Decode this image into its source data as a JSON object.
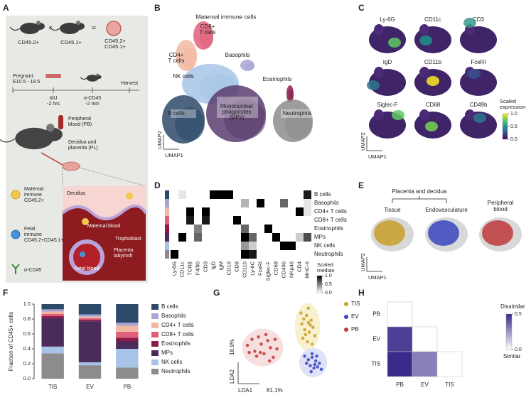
{
  "panel_labels": [
    "A",
    "B",
    "C",
    "D",
    "E",
    "F",
    "G",
    "H"
  ],
  "schematic": {
    "donor_female": "CD45.2+",
    "cross": "×",
    "donor_male": "CD45.1+",
    "equals": "=",
    "offspring": [
      "CD45.2+",
      "CD45.1+"
    ],
    "pregnant": [
      "Pregnant",
      "E10.5 - 18.5"
    ],
    "idu": [
      "IdU",
      "-2 hrs"
    ],
    "acd45_step": [
      "α-CD45",
      "-2 min"
    ],
    "harvest": "Harvest",
    "pb": [
      "Peripheral",
      "blood (PB)"
    ],
    "pl": [
      "Decidua and",
      "placenta (PL)"
    ],
    "legend_maternal": [
      "Maternal",
      "immune",
      "CD45.2+"
    ],
    "legend_fetal": [
      "Fetal",
      "immune",
      "CD45.2+CD45.1+"
    ],
    "legend_antibody": "α-CD45",
    "decidua": "Decidua",
    "maternal_blood": "Maternal blood",
    "trophoblast": "Trophoblast",
    "labyrinth": [
      "Placenta",
      "labyrinth"
    ],
    "fetal_blood": "Fetal blood"
  },
  "umap_b": {
    "title": "Maternal immune cells",
    "clusters": [
      [
        "CD8+",
        "T cells"
      ],
      [
        "CD4+",
        "T cells"
      ],
      [
        "Basophils"
      ],
      [
        "NK cells"
      ],
      [
        "Eosinophils"
      ],
      [
        "Mononuclear",
        "phagocytes",
        "(MPs)"
      ],
      [
        "B cells"
      ],
      [
        "Neutrophils"
      ]
    ],
    "xlabel": "UMAP1",
    "ylabel": "UMAP2"
  },
  "panel_c": {
    "markers": [
      "Ly-6G",
      "CD11c",
      "CD3",
      "IgD",
      "CD11b",
      "FceRI",
      "Siglec-F",
      "CD68",
      "CD49b"
    ],
    "colorbar_title": [
      "Scaled",
      "expression"
    ],
    "colors": [
      "#440154",
      "#3b528b",
      "#21918c",
      "#5ec962",
      "#fde725"
    ],
    "clim": [
      0,
      1
    ],
    "colorbar_ticks": [
      {
        "value": 1,
        "label": "1.0"
      },
      0.5,
      {
        "value": 0,
        "label": "0.0"
      }
    ],
    "xlabel": "UMAP1",
    "ylabel": "UMAP2"
  },
  "panel_e": {
    "group": "Placenta and decidua",
    "tissue": "Tissue",
    "ev": "Endovasculature",
    "pb": [
      "Peripheral",
      "blood"
    ],
    "xlabel": "UMAP1",
    "ylabel": "UMAP2"
  },
  "chart_data": [
    {
      "type": "heatmap",
      "rows": [
        "B cells",
        "Basophils",
        "CD4+ T cells",
        "CD8+ T cells",
        "Eosinophils",
        "MPs",
        "NK cells",
        "Neutrophils"
      ],
      "row_colors": [
        "#2e4a6b",
        "#a9a6d6",
        "#f2b8a2",
        "#e0607a",
        "#8b1c4a",
        "#4a2c5a",
        "#a7c4e8",
        "#8c8c8c"
      ],
      "columns": [
        "Ly-6G",
        "CD11c",
        "TCRβ",
        "F4/80",
        "CD3",
        "IgD",
        "IgM",
        "CD19",
        "CD8",
        "CD11b",
        "Ly-6C",
        "FceRI",
        "Siglec-F",
        "CD68",
        "CD49b",
        "NKp46",
        "CD4",
        "MHC-II"
      ],
      "values": [
        [
          0,
          0.1,
          0,
          0,
          0,
          1,
          1,
          1,
          0,
          0,
          0,
          0,
          0,
          0,
          0,
          0,
          0,
          0.9
        ],
        [
          0,
          0,
          0,
          0,
          0,
          0,
          0,
          0,
          0,
          0.3,
          0,
          1,
          0,
          0,
          0.6,
          0,
          0,
          0.1
        ],
        [
          0,
          0,
          1,
          0,
          1,
          0,
          0,
          0,
          0,
          0,
          0,
          0,
          0,
          0,
          0,
          0,
          1,
          0.1
        ],
        [
          0,
          0,
          0.9,
          0,
          0.9,
          0,
          0,
          0,
          1,
          0,
          0,
          0,
          0,
          0,
          0,
          0,
          0,
          0
        ],
        [
          0,
          0,
          0,
          0.5,
          0,
          0,
          0,
          0,
          0,
          0.6,
          0,
          0,
          1,
          0,
          0,
          0,
          0,
          0
        ],
        [
          0,
          1,
          0,
          0.6,
          0,
          0,
          0,
          0,
          0,
          1,
          0.6,
          0,
          0,
          1,
          0,
          0,
          0.2,
          0.7
        ],
        [
          0,
          0,
          0,
          0,
          0,
          0,
          0,
          0,
          0,
          0.4,
          0.2,
          0,
          0,
          0,
          1,
          1,
          0,
          0
        ],
        [
          1,
          0,
          0,
          0,
          0,
          0,
          0,
          0,
          0,
          1,
          0.9,
          0,
          0,
          0,
          0,
          0,
          0,
          0
        ]
      ],
      "colors": [
        "#ffffff",
        "#000000"
      ],
      "clim": [
        0,
        1
      ],
      "colorbar_title": [
        "Scaled",
        "median"
      ],
      "colorbar_ticks": [
        {
          "value": 1,
          "label": "1.0"
        },
        0.5,
        {
          "value": 0,
          "label": "0.0"
        }
      ]
    },
    {
      "type": "bar",
      "stacked": true,
      "categories": [
        "TIS",
        "EV",
        "PB"
      ],
      "ylabel": "Fraction of CD45+ cells",
      "ylim": [
        0,
        1
      ],
      "yticks": [
        {
          "value": 0,
          "label": "0.0"
        },
        0.2,
        0.4,
        0.6,
        0.8,
        {
          "value": 1,
          "label": "1.0"
        }
      ],
      "series": [
        {
          "name": "B cells",
          "color": "#2e4a6b",
          "values": [
            0.07,
            0.14,
            0.25
          ]
        },
        {
          "name": "Basophils",
          "color": "#a9a6d6",
          "values": [
            0.03,
            0.03,
            0.04
          ]
        },
        {
          "name": "CD4+ T cells",
          "color": "#f2b8a2",
          "values": [
            0.03,
            0.02,
            0.08
          ]
        },
        {
          "name": "CD8+ T cells",
          "color": "#e0607a",
          "values": [
            0.03,
            0.02,
            0.08
          ]
        },
        {
          "name": "Eosinophils",
          "color": "#8b1c4a",
          "values": [
            0.03,
            0.02,
            0.05
          ]
        },
        {
          "name": "MPs",
          "color": "#4a2c5a",
          "values": [
            0.38,
            0.55,
            0.1
          ]
        },
        {
          "name": "NK cells",
          "color": "#a7c4e8",
          "values": [
            0.09,
            0.04,
            0.25
          ]
        },
        {
          "name": "Neutrophils",
          "color": "#8c8c8c",
          "values": [
            0.34,
            0.18,
            0.15
          ]
        }
      ]
    },
    {
      "type": "scatter",
      "xlabel": "LDA1",
      "xlabel_pct": "81.1%",
      "ylabel": "LDA2",
      "ylabel_pct": "18.9%",
      "xlim": [
        -5,
        5
      ],
      "ylim": [
        -3.5,
        3.5
      ],
      "series": [
        {
          "name": "TIS",
          "color": "#c8a02a",
          "x": [
            1.8,
            2.1,
            2.4,
            2.6,
            2.9,
            3.1,
            2.2,
            2.7,
            3.3,
            2.0,
            2.5,
            2.8,
            3.0,
            2.3,
            2.6,
            1.9
          ],
          "values": [
            2.4,
            1.9,
            2.2,
            1.6,
            1.8,
            1.2,
            1.0,
            0.8,
            0.5,
            0.3,
            0.0,
            1.4,
            -0.2,
            0.6,
            2.8,
            1.5
          ]
        },
        {
          "name": "EV",
          "color": "#3a47c0",
          "x": [
            2.2,
            2.6,
            3.0,
            3.4,
            3.8,
            2.8,
            3.2,
            3.6,
            2.4,
            3.0,
            3.5,
            4.0,
            2.9,
            3.3
          ],
          "values": [
            -1.2,
            -1.5,
            -1.3,
            -1.6,
            -1.8,
            -2.0,
            -2.2,
            -2.1,
            -1.8,
            -1.0,
            -1.2,
            -2.3,
            -2.5,
            -1.9
          ]
        },
        {
          "name": "PB",
          "color": "#c0393b",
          "x": [
            -4.0,
            -3.5,
            -3.2,
            -2.8,
            -2.5,
            -2.2,
            -1.8,
            -1.5,
            -1.2,
            -0.8,
            -3.0,
            -2.0,
            -1.6,
            -2.6,
            -3.8,
            -1.0
          ],
          "values": [
            -0.3,
            0.2,
            -0.8,
            0.4,
            -0.2,
            -1.0,
            0.1,
            -0.5,
            -1.3,
            -0.6,
            -1.2,
            0.6,
            -1.6,
            -0.9,
            -0.9,
            0.2
          ]
        }
      ]
    },
    {
      "type": "heatmap",
      "rows": [
        "PB",
        "EV",
        "TIS"
      ],
      "columns": [
        "PB",
        "EV",
        "TIS"
      ],
      "values": [
        [
          0,
          null,
          null
        ],
        [
          0.45,
          0,
          null
        ],
        [
          0.5,
          0.3,
          0
        ]
      ],
      "colors": [
        "#ffffff",
        "#3a2a8a"
      ],
      "clim": [
        0,
        0.5
      ],
      "colorbar_top": "Dissimilar",
      "colorbar_bottom": "Similar",
      "colorbar_ticks": [
        0.5,
        {
          "value": 0,
          "label": "0.0"
        }
      ]
    }
  ]
}
